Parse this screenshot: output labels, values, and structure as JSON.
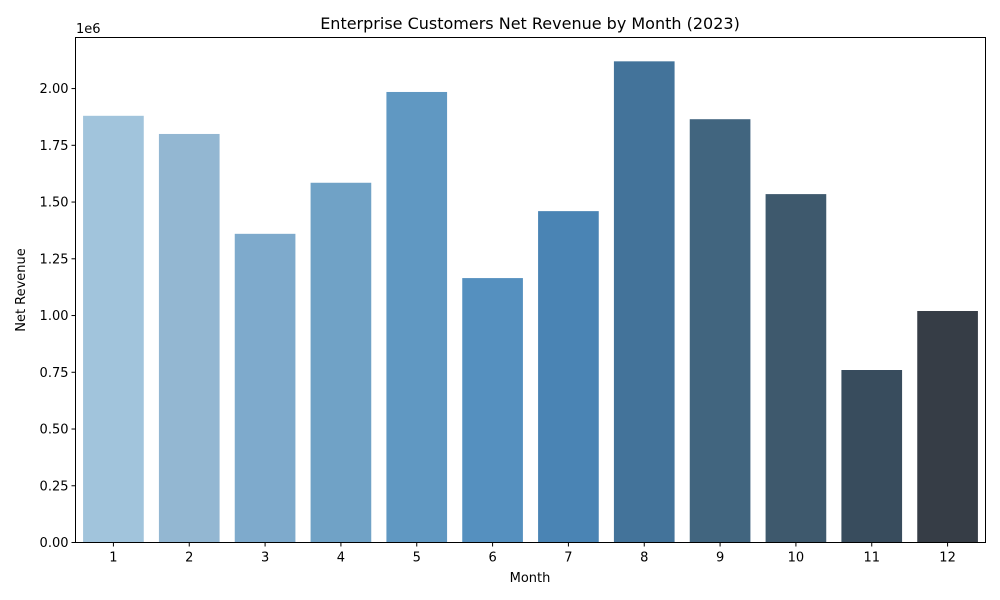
{
  "chart_data": {
    "type": "bar",
    "title": "Enterprise Customers Net Revenue by Month (2023)",
    "xlabel": "Month",
    "ylabel": "Net Revenue",
    "y_offset_label": "1e6",
    "categories": [
      "1",
      "2",
      "3",
      "4",
      "5",
      "6",
      "7",
      "8",
      "9",
      "10",
      "11",
      "12"
    ],
    "values": [
      1880000,
      1800000,
      1360000,
      1585000,
      1985000,
      1165000,
      1460000,
      2120000,
      1865000,
      1535000,
      760000,
      1020000
    ],
    "ylim": [
      0,
      2225000
    ],
    "yticks": [
      0,
      250000,
      500000,
      750000,
      1000000,
      1250000,
      1500000,
      1750000,
      2000000
    ],
    "ytick_labels": [
      "0.00",
      "0.25",
      "0.50",
      "0.75",
      "1.00",
      "1.25",
      "1.50",
      "1.75",
      "2.00"
    ],
    "colors": [
      "#a1c4dc",
      "#93b7d2",
      "#7eaacc",
      "#70a2c6",
      "#6098c2",
      "#5590bf",
      "#4a84b4",
      "#43739a",
      "#41657f",
      "#3e596d",
      "#384c5d",
      "#363d46"
    ],
    "grid": false,
    "legend": "none"
  }
}
